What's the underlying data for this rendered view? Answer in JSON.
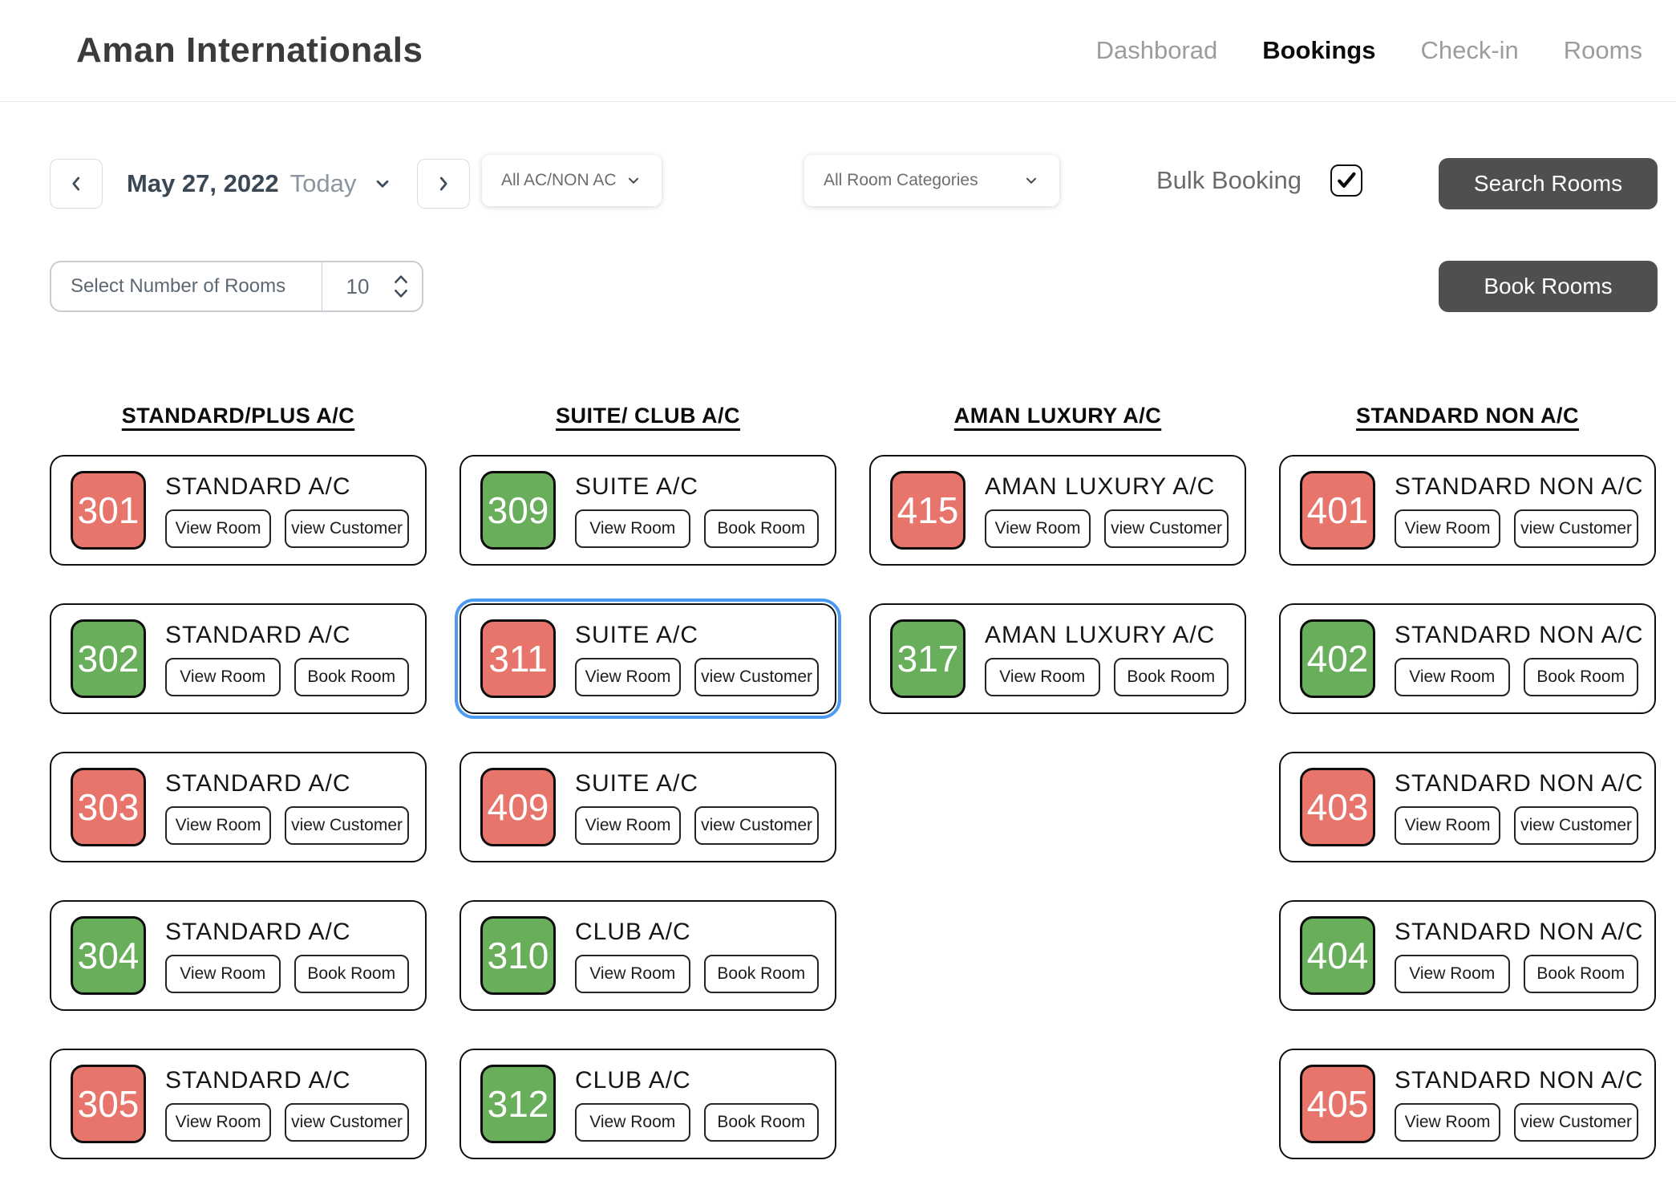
{
  "header": {
    "brand": "Aman Internationals",
    "nav": [
      {
        "label": "Dashborad",
        "active": false
      },
      {
        "label": "Bookings",
        "active": true
      },
      {
        "label": "Check-in",
        "active": false
      },
      {
        "label": "Rooms",
        "active": false
      }
    ]
  },
  "filters": {
    "date_nav": {
      "date": "May 27, 2022",
      "today": "Today"
    },
    "ac_dropdown": {
      "value": "All AC/NON AC"
    },
    "category_dropdown": {
      "value": "All Room Categories"
    },
    "bulk_booking": {
      "label": "Bulk Booking",
      "checked": true,
      "check_glyph": "✓"
    },
    "search_button": "Search Rooms",
    "rooms_input": {
      "label": "Select Number of Rooms",
      "value": "10"
    },
    "book_button": "Book Rooms"
  },
  "icons": {
    "prev": "chevron-left-icon",
    "next": "chevron-right-icon",
    "date_caret": "chevron-down-icon",
    "dropdown_caret": "chevron-down-icon",
    "stepper": [
      "chevron-up-icon",
      "chevron-down-icon"
    ],
    "checkbox": "check-icon"
  },
  "legend_colors": {
    "occupied_red": "#e8756b",
    "available_green": "#69ae5b",
    "selected_outline_blue": "#4e9af1",
    "primary_button_gray": "#514e4e"
  },
  "columns": [
    {
      "title": "STANDARD/PLUS A/C",
      "rooms": [
        {
          "number": "301",
          "type": "STANDARD A/C",
          "status": "occupied",
          "selected": false,
          "actions": [
            "View Room",
            "view Customer"
          ]
        },
        {
          "number": "302",
          "type": "STANDARD A/C",
          "status": "available",
          "selected": false,
          "actions": [
            "View Room",
            "Book Room"
          ]
        },
        {
          "number": "303",
          "type": "STANDARD A/C",
          "status": "occupied",
          "selected": false,
          "actions": [
            "View Room",
            "view Customer"
          ]
        },
        {
          "number": "304",
          "type": "STANDARD A/C",
          "status": "available",
          "selected": false,
          "actions": [
            "View Room",
            "Book Room"
          ]
        },
        {
          "number": "305",
          "type": "STANDARD A/C",
          "status": "occupied",
          "selected": false,
          "actions": [
            "View Room",
            "view Customer"
          ]
        }
      ]
    },
    {
      "title": "SUITE/ CLUB A/C",
      "rooms": [
        {
          "number": "309",
          "type": "SUITE A/C",
          "status": "available",
          "selected": false,
          "actions": [
            "View Room",
            "Book Room"
          ]
        },
        {
          "number": "311",
          "type": "SUITE A/C",
          "status": "occupied",
          "selected": true,
          "actions": [
            "View Room",
            "view Customer"
          ]
        },
        {
          "number": "409",
          "type": "SUITE A/C",
          "status": "occupied",
          "selected": false,
          "actions": [
            "View Room",
            "view Customer"
          ]
        },
        {
          "number": "310",
          "type": "CLUB A/C",
          "status": "available",
          "selected": false,
          "actions": [
            "View Room",
            "Book Room"
          ]
        },
        {
          "number": "312",
          "type": "CLUB A/C",
          "status": "available",
          "selected": false,
          "actions": [
            "View Room",
            "Book Room"
          ]
        }
      ]
    },
    {
      "title": "AMAN LUXURY A/C",
      "rooms": [
        {
          "number": "415",
          "type": "AMAN LUXURY A/C",
          "status": "occupied",
          "selected": false,
          "actions": [
            "View Room",
            "view Customer"
          ]
        },
        {
          "number": "317",
          "type": "AMAN LUXURY A/C",
          "status": "available",
          "selected": false,
          "actions": [
            "View Room",
            "Book Room"
          ]
        }
      ]
    },
    {
      "title": "STANDARD NON A/C",
      "rooms": [
        {
          "number": "401",
          "type": "STANDARD NON A/C",
          "status": "occupied",
          "selected": false,
          "actions": [
            "View Room",
            "view Customer"
          ]
        },
        {
          "number": "402",
          "type": "STANDARD NON A/C",
          "status": "available",
          "selected": false,
          "actions": [
            "View Room",
            "Book Room"
          ]
        },
        {
          "number": "403",
          "type": "STANDARD NON A/C",
          "status": "occupied",
          "selected": false,
          "actions": [
            "View Room",
            "view Customer"
          ]
        },
        {
          "number": "404",
          "type": "STANDARD NON A/C",
          "status": "available",
          "selected": false,
          "actions": [
            "View Room",
            "Book Room"
          ]
        },
        {
          "number": "405",
          "type": "STANDARD NON A/C",
          "status": "occupied",
          "selected": false,
          "actions": [
            "View Room",
            "view Customer"
          ]
        }
      ]
    }
  ]
}
